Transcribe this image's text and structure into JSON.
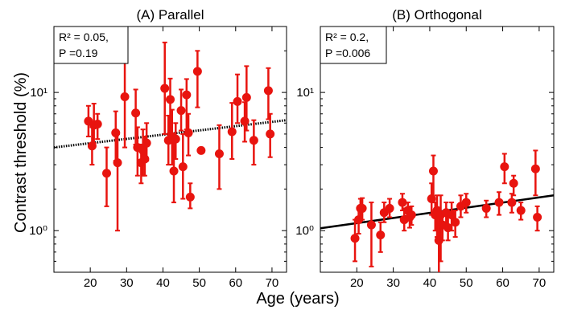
{
  "chart_data": {
    "type": "scatter",
    "y_scale": "log",
    "xlabel": "Age (years)",
    "ylabel": "Contrast threshold (%)",
    "marker_color": "#e8140f",
    "fit_color": "#000000",
    "x_ticks": [
      20,
      30,
      40,
      50,
      60,
      70
    ],
    "panels": [
      {
        "title": "(A) Parallel",
        "stats": [
          "R² = 0.05,",
          "P =0.19"
        ],
        "xlim": [
          10,
          74
        ],
        "ylim": [
          0.5,
          30
        ],
        "y_ticks": [
          1,
          10
        ],
        "y_tick_labels": [
          "10⁰",
          "10¹"
        ],
        "fit_style": "dotted",
        "fit": [
          [
            10,
            4.0
          ],
          [
            74,
            6.3
          ]
        ],
        "points": [
          {
            "x": 19.5,
            "y": 6.2,
            "lo": 4.8,
            "hi": 8.0
          },
          {
            "x": 20.5,
            "y": 4.1,
            "lo": 3.0,
            "hi": 5.6
          },
          {
            "x": 21.0,
            "y": 5.8,
            "lo": 4.3,
            "hi": 8.3
          },
          {
            "x": 22.0,
            "y": 5.9,
            "lo": 4.6,
            "hi": 7.0
          },
          {
            "x": 24.5,
            "y": 2.6,
            "lo": 1.5,
            "hi": 4.0
          },
          {
            "x": 27.0,
            "y": 5.1,
            "lo": 3.2,
            "hi": 7.3
          },
          {
            "x": 27.5,
            "y": 3.1,
            "lo": 1.0,
            "hi": 5.0
          },
          {
            "x": 29.5,
            "y": 9.3,
            "lo": 4.0,
            "hi": 17.0
          },
          {
            "x": 32.5,
            "y": 7.1,
            "lo": 4.2,
            "hi": 10.5
          },
          {
            "x": 33.0,
            "y": 4.0,
            "lo": 2.5,
            "hi": 5.6
          },
          {
            "x": 34.0,
            "y": 3.1,
            "lo": 2.2,
            "hi": 4.2
          },
          {
            "x": 34.5,
            "y": 3.8,
            "lo": 2.5,
            "hi": 5.4
          },
          {
            "x": 35.0,
            "y": 3.3,
            "lo": 2.5,
            "hi": 4.8
          },
          {
            "x": 35.5,
            "y": 4.3,
            "lo": 3.2,
            "hi": 6.0
          },
          {
            "x": 40.5,
            "y": 10.7,
            "lo": 5.0,
            "hi": 23.0
          },
          {
            "x": 41.5,
            "y": 4.5,
            "lo": 3.0,
            "hi": 6.8
          },
          {
            "x": 42.0,
            "y": 8.9,
            "lo": 4.6,
            "hi": 12.6
          },
          {
            "x": 42.5,
            "y": 4.8,
            "lo": 3.0,
            "hi": 7.5
          },
          {
            "x": 43.0,
            "y": 2.7,
            "lo": 1.6,
            "hi": 4.5
          },
          {
            "x": 43.5,
            "y": 4.6,
            "lo": 3.3,
            "hi": 6.0
          },
          {
            "x": 45.0,
            "y": 7.4,
            "lo": 5.3,
            "hi": 10.5
          },
          {
            "x": 45.5,
            "y": 2.9,
            "lo": 1.7,
            "hi": 5.0
          },
          {
            "x": 46.5,
            "y": 9.6,
            "lo": 5.4,
            "hi": 12.5
          },
          {
            "x": 47.0,
            "y": 5.1,
            "lo": 3.5,
            "hi": 7.0
          },
          {
            "x": 47.5,
            "y": 1.75,
            "lo": 1.45,
            "hi": 2.2
          },
          {
            "x": 49.5,
            "y": 14.2,
            "lo": 7.8,
            "hi": 20.0
          },
          {
            "x": 50.5,
            "y": 3.8,
            "lo": 3.8,
            "hi": 3.8
          },
          {
            "x": 55.5,
            "y": 3.6,
            "lo": 2.0,
            "hi": 5.8
          },
          {
            "x": 59.0,
            "y": 5.2,
            "lo": 3.3,
            "hi": 8.4
          },
          {
            "x": 60.5,
            "y": 8.6,
            "lo": 6.0,
            "hi": 13.5
          },
          {
            "x": 62.5,
            "y": 6.2,
            "lo": 4.4,
            "hi": 8.5
          },
          {
            "x": 63.0,
            "y": 9.2,
            "lo": 5.3,
            "hi": 15.5
          },
          {
            "x": 65.0,
            "y": 4.5,
            "lo": 3.0,
            "hi": 6.3
          },
          {
            "x": 69.0,
            "y": 10.3,
            "lo": 6.4,
            "hi": 15.0
          },
          {
            "x": 69.5,
            "y": 5.0,
            "lo": 3.4,
            "hi": 7.0
          }
        ]
      },
      {
        "title": "(B) Orthogonal",
        "stats": [
          "R² = 0.2,",
          "P =0.006"
        ],
        "xlim": [
          10,
          74
        ],
        "ylim": [
          0.5,
          30
        ],
        "y_ticks": [
          1,
          10
        ],
        "y_tick_labels": [
          "10⁰",
          "10¹"
        ],
        "fit_style": "solid",
        "fit": [
          [
            10,
            1.04
          ],
          [
            74,
            1.8
          ]
        ],
        "points": [
          {
            "x": 19.5,
            "y": 0.88,
            "lo": 0.6,
            "hi": 1.2
          },
          {
            "x": 20.5,
            "y": 1.2,
            "lo": 0.95,
            "hi": 1.45
          },
          {
            "x": 21.0,
            "y": 1.45,
            "lo": 1.2,
            "hi": 1.7
          },
          {
            "x": 21.5,
            "y": 1.45,
            "lo": 1.2,
            "hi": 1.72
          },
          {
            "x": 24.0,
            "y": 1.1,
            "lo": 0.55,
            "hi": 1.6
          },
          {
            "x": 26.5,
            "y": 0.93,
            "lo": 0.7,
            "hi": 1.15
          },
          {
            "x": 27.5,
            "y": 1.35,
            "lo": 1.15,
            "hi": 1.6
          },
          {
            "x": 29.0,
            "y": 1.45,
            "lo": 1.25,
            "hi": 1.7
          },
          {
            "x": 32.5,
            "y": 1.6,
            "lo": 1.4,
            "hi": 1.85
          },
          {
            "x": 33.0,
            "y": 1.2,
            "lo": 1.0,
            "hi": 1.45
          },
          {
            "x": 34.0,
            "y": 1.4,
            "lo": 1.2,
            "hi": 1.6
          },
          {
            "x": 34.5,
            "y": 1.25,
            "lo": 1.05,
            "hi": 1.45
          },
          {
            "x": 35.0,
            "y": 1.3,
            "lo": 1.1,
            "hi": 1.5
          },
          {
            "x": 40.5,
            "y": 1.7,
            "lo": 1.3,
            "hi": 2.2
          },
          {
            "x": 41.0,
            "y": 2.7,
            "lo": 1.6,
            "hi": 3.5
          },
          {
            "x": 41.5,
            "y": 1.3,
            "lo": 1.0,
            "hi": 1.6
          },
          {
            "x": 42.0,
            "y": 1.4,
            "lo": 0.9,
            "hi": 1.8
          },
          {
            "x": 42.5,
            "y": 0.85,
            "lo": 0.45,
            "hi": 1.3
          },
          {
            "x": 43.0,
            "y": 1.3,
            "lo": 0.6,
            "hi": 1.8
          },
          {
            "x": 43.5,
            "y": 1.1,
            "lo": 0.85,
            "hi": 1.35
          },
          {
            "x": 44.5,
            "y": 1.35,
            "lo": 1.1,
            "hi": 1.6
          },
          {
            "x": 45.0,
            "y": 1.05,
            "lo": 0.85,
            "hi": 1.3
          },
          {
            "x": 46.0,
            "y": 1.3,
            "lo": 1.0,
            "hi": 1.6
          },
          {
            "x": 47.0,
            "y": 1.15,
            "lo": 0.9,
            "hi": 1.4
          },
          {
            "x": 48.5,
            "y": 1.5,
            "lo": 1.25,
            "hi": 1.8
          },
          {
            "x": 50.0,
            "y": 1.6,
            "lo": 1.35,
            "hi": 1.85
          },
          {
            "x": 55.5,
            "y": 1.45,
            "lo": 1.25,
            "hi": 1.65
          },
          {
            "x": 59.0,
            "y": 1.6,
            "lo": 1.3,
            "hi": 1.9
          },
          {
            "x": 60.5,
            "y": 2.9,
            "lo": 2.2,
            "hi": 3.6
          },
          {
            "x": 62.5,
            "y": 1.6,
            "lo": 1.35,
            "hi": 1.85
          },
          {
            "x": 63.0,
            "y": 2.2,
            "lo": 1.8,
            "hi": 2.5
          },
          {
            "x": 65.0,
            "y": 1.4,
            "lo": 1.2,
            "hi": 1.6
          },
          {
            "x": 69.0,
            "y": 2.8,
            "lo": 1.8,
            "hi": 3.8
          },
          {
            "x": 69.5,
            "y": 1.25,
            "lo": 1.0,
            "hi": 1.5
          }
        ]
      }
    ]
  }
}
